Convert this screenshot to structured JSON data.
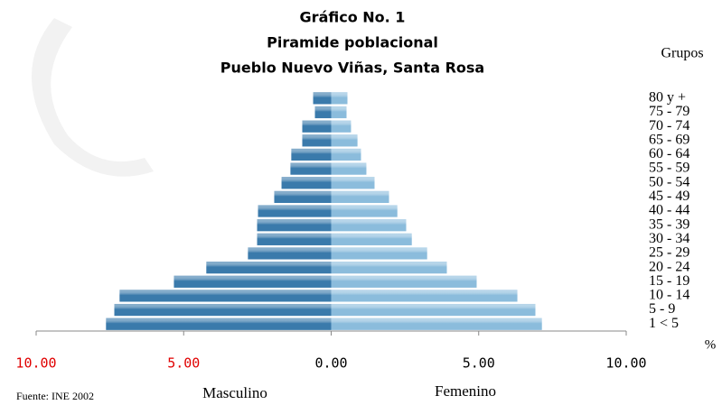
{
  "chart_data": {
    "type": "pyramid",
    "title": [
      "Gráfico No. 1",
      "Piramide poblacional",
      "Pueblo Nuevo Viñas, Santa Rosa"
    ],
    "categories_label": "Grupos",
    "categories": [
      "1 < 5",
      "5 - 9",
      "10 - 14",
      "15 - 19",
      "20 - 24",
      "25 - 29",
      "30 - 34",
      "35 - 39",
      "40 - 44",
      "45 - 49",
      "50 - 54",
      "55 - 59",
      "60 - 64",
      "65 - 69",
      "70 - 74",
      "75 - 79",
      "80 y +"
    ],
    "series": [
      {
        "name": "Masculino",
        "color": "#3a7aab",
        "values": [
          -7.63,
          -7.35,
          -7.17,
          -5.33,
          -4.23,
          -2.82,
          -2.51,
          -2.51,
          -2.48,
          -1.93,
          -1.68,
          -1.38,
          -1.35,
          -0.98,
          -0.98,
          -0.55,
          -0.61
        ]
      },
      {
        "name": "Femenino",
        "color": "#8bbcdc",
        "values": [
          7.14,
          6.92,
          6.31,
          4.93,
          3.92,
          3.25,
          2.73,
          2.54,
          2.24,
          1.96,
          1.47,
          1.19,
          1.01,
          0.89,
          0.67,
          0.52,
          0.55
        ]
      }
    ],
    "x_label": "%",
    "xlim": [
      -10,
      10
    ],
    "xticks": [
      {
        "value": -10,
        "label": "10.00"
      },
      {
        "value": -5,
        "label": "5.00"
      },
      {
        "value": 0,
        "label": "0.00"
      },
      {
        "value": 5,
        "label": "5.00"
      },
      {
        "value": 10,
        "label": "10.00"
      }
    ],
    "negative_tick_color": "#e00000",
    "source": "Fuente: INE 2002"
  }
}
